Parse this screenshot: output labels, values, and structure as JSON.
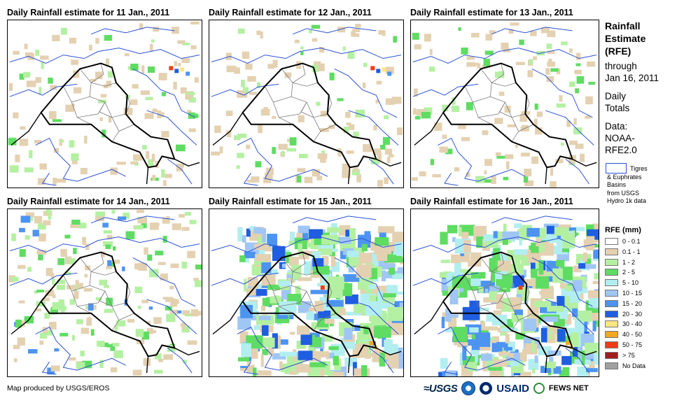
{
  "panels": [
    {
      "title": "Daily Rainfall estimate for 11 Jan., 2011",
      "rain_level": 1
    },
    {
      "title": "Daily Rainfall estimate for 12 Jan., 2011",
      "rain_level": 1
    },
    {
      "title": "Daily Rainfall estimate for 13 Jan., 2011",
      "rain_level": 1
    },
    {
      "title": "Daily Rainfall estimate for 14 Jan., 2011",
      "rain_level": 2
    },
    {
      "title": "Daily Rainfall estimate for 15 Jan., 2011",
      "rain_level": 4
    },
    {
      "title": "Daily Rainfall estimate for 16 Jan., 2011",
      "rain_level": 4
    }
  ],
  "side": {
    "title_lines": [
      "Rainfall",
      "Estimate",
      "(RFE)"
    ],
    "through_lines": [
      "through",
      "Jan 16, 2011"
    ],
    "daily_lines": [
      "Daily",
      "Totals"
    ],
    "data_lines": [
      "Data:",
      "NOAA-",
      "RFE2.0"
    ],
    "basin_lines": [
      "Tigres",
      "& Euphrates",
      "Basins",
      "from USGS",
      "Hydro 1k data"
    ]
  },
  "legend": {
    "title": "RFE (mm)",
    "items": [
      {
        "label": "0 - 0.1",
        "color": "#ffffff"
      },
      {
        "label": "0.1 - 1",
        "color": "#e4d1b1"
      },
      {
        "label": "1 - 2",
        "color": "#b4f0a2"
      },
      {
        "label": "2 - 5",
        "color": "#5fdc62"
      },
      {
        "label": "5 - 10",
        "color": "#b2eef0"
      },
      {
        "label": "10 - 15",
        "color": "#9fc6f5"
      },
      {
        "label": "15 - 20",
        "color": "#4d94f0"
      },
      {
        "label": "20 - 30",
        "color": "#1f5ee0"
      },
      {
        "label": "30 - 40",
        "color": "#ffe680"
      },
      {
        "label": "40 - 50",
        "color": "#f5a623"
      },
      {
        "label": "50 - 75",
        "color": "#f03c14"
      },
      {
        "label": "> 75",
        "color": "#a01e1e"
      },
      {
        "label": "No Data",
        "color": "#a0a0a0"
      }
    ]
  },
  "footer": {
    "credit": "Map produced by USGS/EROS"
  },
  "logos": {
    "usgs": "≈USGS",
    "usaid": "USAID",
    "fews": "FEWS NET"
  },
  "colors": {
    "basin": "#2b52d6",
    "border": "#000000",
    "province": "#7a7a7a"
  }
}
